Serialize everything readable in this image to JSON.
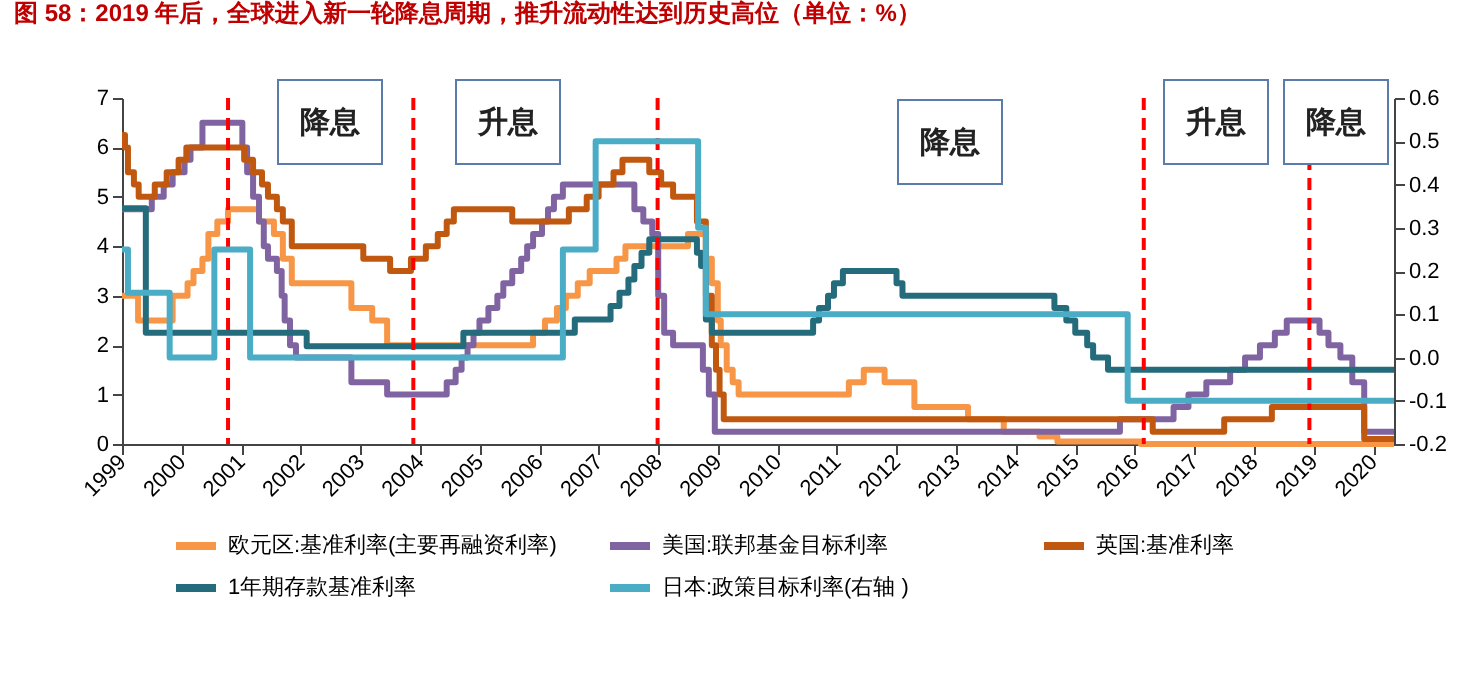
{
  "chart_data": {
    "type": "step",
    "title": "图 58：2019 年后，全球进入新一轮降息周期，推升流动性达到历史高位（单位：%）",
    "series": [
      {
        "name": "欧元区:基准利率(主要再融资利率)",
        "color": "#f79646",
        "x": [
          1999.0,
          1999.27,
          1999.85,
          2000.1,
          2000.2,
          2000.35,
          2000.45,
          2000.6,
          2000.78,
          2001.3,
          2001.55,
          2001.7,
          2001.85,
          2002.85,
          2003.2,
          2003.45,
          2005.9,
          2006.1,
          2006.3,
          2006.45,
          2006.65,
          2006.85,
          2007.3,
          2007.45,
          2008.5,
          2008.8,
          2008.9,
          2009.0,
          2009.05,
          2009.15,
          2009.25,
          2009.35,
          2011.2,
          2011.45,
          2011.8,
          2012.3,
          2013.2,
          2013.8,
          2014.4,
          2014.7,
          2016.1,
          2020.35
        ],
        "values": [
          3.0,
          2.5,
          3.0,
          3.25,
          3.5,
          3.75,
          4.25,
          4.5,
          4.75,
          4.5,
          4.25,
          3.75,
          3.25,
          2.75,
          2.5,
          2.0,
          2.25,
          2.5,
          2.75,
          3.0,
          3.25,
          3.5,
          3.75,
          4.0,
          4.25,
          3.75,
          3.25,
          2.5,
          2.0,
          1.5,
          1.25,
          1.0,
          1.25,
          1.5,
          1.25,
          0.75,
          0.5,
          0.25,
          0.15,
          0.05,
          0.0,
          0.0
        ]
      },
      {
        "name": "美国:联邦基金目标利率",
        "color": "#8064a2",
        "x": [
          1999.0,
          1999.5,
          1999.7,
          1999.85,
          2000.05,
          2000.15,
          2000.35,
          2001.02,
          2001.1,
          2001.2,
          2001.3,
          2001.38,
          2001.45,
          2001.6,
          2001.68,
          2001.73,
          2001.82,
          2001.92,
          2002.85,
          2003.45,
          2004.45,
          2004.6,
          2004.7,
          2004.8,
          2004.9,
          2005.0,
          2005.15,
          2005.3,
          2005.4,
          2005.55,
          2005.7,
          2005.8,
          2005.9,
          2006.05,
          2006.15,
          2006.25,
          2006.4,
          2007.6,
          2007.75,
          2007.9,
          2008.0,
          2008.1,
          2008.25,
          2008.75,
          2008.85,
          2008.95,
          2015.75,
          2016.65,
          2016.9,
          2017.2,
          2017.6,
          2017.85,
          2018.1,
          2018.35,
          2018.55,
          2019.1,
          2019.25,
          2019.45,
          2019.65,
          2019.85,
          2020.35
        ],
        "values": [
          4.75,
          5.0,
          5.25,
          5.5,
          5.75,
          6.0,
          6.5,
          6.0,
          5.5,
          5.0,
          4.5,
          4.0,
          3.75,
          3.5,
          3.0,
          2.5,
          2.0,
          1.75,
          1.25,
          1.0,
          1.25,
          1.5,
          1.75,
          2.0,
          2.25,
          2.5,
          2.75,
          3.0,
          3.25,
          3.5,
          3.75,
          4.0,
          4.25,
          4.5,
          4.75,
          5.0,
          5.25,
          4.75,
          4.5,
          4.25,
          3.0,
          2.25,
          2.0,
          1.5,
          1.0,
          0.25,
          0.5,
          0.75,
          1.0,
          1.25,
          1.5,
          1.75,
          2.0,
          2.25,
          2.5,
          2.25,
          2.0,
          1.75,
          1.25,
          0.25,
          0.25
        ]
      },
      {
        "name": "英国:基准利率",
        "color": "#c0590f",
        "x": [
          1999.0,
          1999.05,
          1999.1,
          1999.2,
          1999.28,
          1999.55,
          1999.75,
          1999.95,
          2000.08,
          2001.05,
          2001.2,
          2001.35,
          2001.45,
          2001.6,
          2001.7,
          2001.85,
          2003.05,
          2003.5,
          2003.85,
          2004.1,
          2004.3,
          2004.45,
          2004.57,
          2005.55,
          2006.5,
          2006.8,
          2007.0,
          2007.25,
          2007.4,
          2007.85,
          2008.05,
          2008.25,
          2008.65,
          2008.8,
          2008.9,
          2008.97,
          2009.03,
          2009.1,
          2016.3,
          2017.5,
          2018.3,
          2019.85,
          2020.35
        ],
        "values": [
          6.25,
          6.0,
          5.5,
          5.25,
          5.0,
          5.25,
          5.5,
          5.75,
          6.0,
          5.75,
          5.5,
          5.25,
          5.0,
          4.75,
          4.5,
          4.0,
          3.75,
          3.5,
          3.75,
          4.0,
          4.25,
          4.5,
          4.75,
          4.5,
          4.75,
          5.0,
          5.25,
          5.5,
          5.75,
          5.5,
          5.25,
          5.0,
          4.5,
          3.0,
          2.0,
          1.5,
          1.0,
          0.5,
          0.25,
          0.5,
          0.75,
          0.1,
          0.1
        ]
      },
      {
        "name": "1年期存款基准利率",
        "color": "#246b7c",
        "x": [
          1999.0,
          1999.4,
          2002.1,
          2004.73,
          2006.6,
          2007.2,
          2007.35,
          2007.5,
          2007.6,
          2007.72,
          2007.85,
          2008.65,
          2008.72,
          2008.8,
          2008.9,
          2010.6,
          2010.7,
          2010.85,
          2010.95,
          2011.1,
          2012.0,
          2012.1,
          2014.65,
          2014.85,
          2015.0,
          2015.2,
          2015.3,
          2015.55,
          2020.35
        ],
        "values": [
          4.77,
          2.25,
          1.98,
          2.25,
          2.52,
          2.79,
          3.06,
          3.33,
          3.6,
          3.87,
          4.14,
          3.87,
          3.6,
          2.52,
          2.25,
          2.5,
          2.75,
          3.0,
          3.25,
          3.5,
          3.25,
          3.0,
          2.75,
          2.5,
          2.25,
          2.0,
          1.75,
          1.5,
          1.5
        ]
      },
      {
        "name": "日本:政策目标利率(右轴 )",
        "color": "#4bacc6",
        "axis": "y2",
        "x": [
          1999.0,
          1999.1,
          1999.8,
          2000.55,
          2001.15,
          2006.4,
          2006.95,
          2008.67,
          2008.8,
          2015.88,
          2020.35
        ],
        "values": [
          0.25,
          0.15,
          0.0,
          0.25,
          0.0,
          0.25,
          0.5,
          0.3,
          0.1,
          -0.1,
          -0.1
        ]
      }
    ],
    "xlim": [
      1999,
      2020.35
    ],
    "xticks": [
      1999,
      2000,
      2001,
      2002,
      2003,
      2004,
      2005,
      2006,
      2007,
      2008,
      2009,
      2010,
      2011,
      2012,
      2013,
      2014,
      2015,
      2016,
      2017,
      2018,
      2019,
      2020
    ],
    "ylim": [
      0,
      7
    ],
    "yticks": [
      0,
      1,
      2,
      3,
      4,
      5,
      6,
      7
    ],
    "y2lim": [
      -0.2,
      0.6
    ],
    "y2ticks": [
      -0.2,
      -0.1,
      {
        "value": 0,
        "label": "0.0"
      },
      0.1,
      0.2,
      0.3,
      0.4,
      0.5,
      0.6
    ],
    "ref_lines": [
      {
        "axis": "x",
        "value": 2000.78,
        "color": "#ff0000",
        "line_style": "dashed"
      },
      {
        "axis": "x",
        "value": 2003.89,
        "color": "#ff0000",
        "line_style": "dashed"
      },
      {
        "axis": "x",
        "value": 2007.99,
        "color": "#ff0000",
        "line_style": "dashed"
      },
      {
        "axis": "x",
        "value": 2016.15,
        "color": "#ff0000",
        "line_style": "dashed"
      },
      {
        "axis": "x",
        "value": 2018.93,
        "color": "#ff0000",
        "line_style": "dashed"
      }
    ],
    "annotations": [
      "降息",
      "升息",
      "降息",
      "升息",
      "降息"
    ],
    "grid": false,
    "legend": "bottom",
    "line_style": "solid",
    "marker": "none"
  }
}
